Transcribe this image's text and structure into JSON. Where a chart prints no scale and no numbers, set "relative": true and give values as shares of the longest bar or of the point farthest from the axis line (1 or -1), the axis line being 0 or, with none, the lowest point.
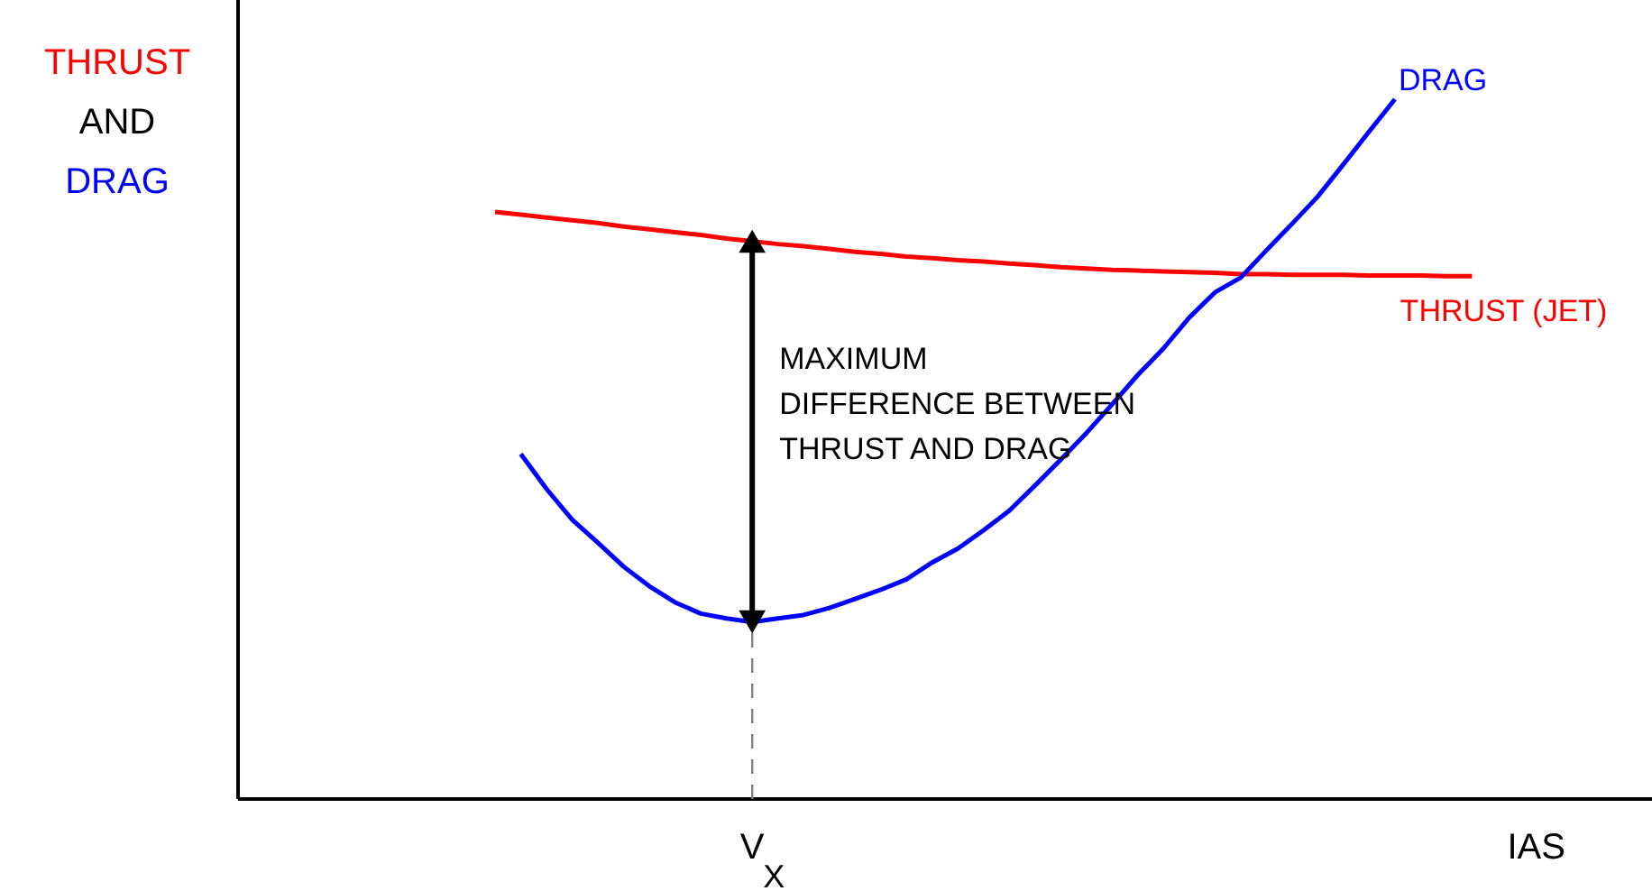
{
  "chart_data": {
    "type": "line",
    "relative": true,
    "xlabel": "IAS",
    "ylabel": "THRUST AND DRAG",
    "grid": false,
    "legend": false,
    "marker": "none",
    "line_style": "solid",
    "categories": [
      null,
      null,
      null,
      null,
      null,
      null,
      null,
      null,
      null,
      null,
      null,
      null,
      null,
      null,
      null,
      null,
      null,
      null,
      null,
      null,
      null,
      null,
      null,
      null,
      null,
      null,
      null,
      null,
      null,
      null,
      null,
      null,
      null,
      null,
      null,
      null,
      null,
      null,
      null,
      null,
      null,
      null,
      null,
      null,
      null,
      null,
      null,
      null,
      null,
      null,
      null,
      null,
      null,
      null,
      null,
      null
    ],
    "series": [
      {
        "name": "THRUST (JET)",
        "color": "#ff0000",
        "values": [
          null,
          null,
          null,
          null,
          null,
          null,
          null,
          null,
          null,
          null,
          0.839,
          0.835,
          0.831,
          0.827,
          0.823,
          0.818,
          0.814,
          0.81,
          0.806,
          0.801,
          0.797,
          0.793,
          0.79,
          0.786,
          0.782,
          0.779,
          0.775,
          0.773,
          0.77,
          0.768,
          0.765,
          0.763,
          0.76,
          0.758,
          0.756,
          0.755,
          0.754,
          0.753,
          0.752,
          0.75,
          0.75,
          0.749,
          0.749,
          0.749,
          0.748,
          0.748,
          0.748,
          0.747,
          0.747,
          null,
          null,
          null,
          null,
          null,
          null,
          null
        ]
      },
      {
        "name": "DRAG",
        "color": "#0000ff",
        "values": [
          null,
          null,
          null,
          null,
          null,
          null,
          null,
          null,
          null,
          null,
          null,
          0.493,
          0.443,
          0.399,
          0.366,
          0.332,
          0.304,
          0.281,
          0.265,
          0.258,
          0.253,
          0.258,
          0.263,
          0.273,
          0.286,
          0.299,
          0.314,
          0.338,
          0.358,
          0.384,
          0.412,
          0.448,
          0.485,
          0.523,
          0.564,
          0.606,
          0.644,
          0.688,
          0.724,
          0.745,
          0.784,
          0.822,
          0.861,
          0.907,
          0.954,
          1.0,
          null,
          null,
          null,
          null,
          null,
          null,
          null,
          null,
          null,
          null
        ]
      }
    ],
    "ref_lines": [
      {
        "axis": "x",
        "label": "V$_{X}$",
        "line_style": "dashed",
        "color": "#808080"
      }
    ],
    "annotations": [
      "MAXIMUM\nDIFFERENCE BETWEEN\nTHRUST AND DRAG"
    ]
  }
}
